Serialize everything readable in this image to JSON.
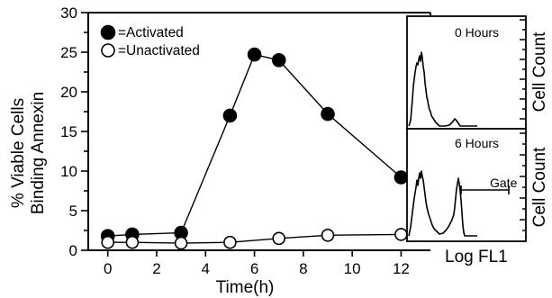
{
  "chart_data": [
    {
      "type": "line",
      "xlabel": "Time(h)",
      "ylabel_lines": [
        "% Viable Cells",
        "Binding Annexin"
      ],
      "xlim": [
        -0.8,
        13.2
      ],
      "ylim": [
        0,
        30
      ],
      "xticks": [
        0,
        2,
        4,
        6,
        8,
        10,
        12
      ],
      "yticks": [
        0,
        5,
        10,
        15,
        20,
        25,
        30
      ],
      "grid": false,
      "legend": "top-left",
      "series": [
        {
          "name": "=Activated",
          "marker": "filled-circle",
          "color": "#000000",
          "x": [
            0,
            1,
            3,
            5,
            6,
            7,
            9,
            12
          ],
          "y": [
            1.8,
            2.0,
            2.2,
            17.0,
            24.7,
            24.0,
            17.2,
            9.2
          ]
        },
        {
          "name": "=Unactivated",
          "marker": "open-circle",
          "color": "#000000",
          "x": [
            0,
            1,
            3,
            5,
            7,
            9,
            12
          ],
          "y": [
            1.0,
            1.0,
            0.9,
            1.0,
            1.5,
            1.9,
            2.0
          ]
        }
      ]
    },
    {
      "type": "histogram",
      "panels": [
        {
          "label": "0 Hours",
          "ylabel": "Cell Count"
        },
        {
          "label": "6 Hours",
          "ylabel": "Cell Count",
          "gate_label": "Gate"
        }
      ],
      "xlabel": "Log FL1"
    }
  ]
}
